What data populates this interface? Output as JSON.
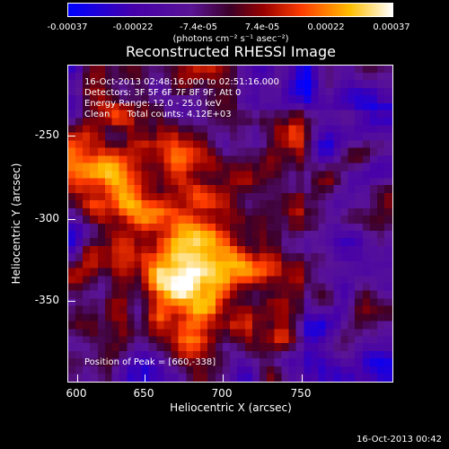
{
  "colorbar": {
    "tick_labels": [
      "-0.00037",
      "-0.00022",
      "-7.4e-05",
      "7.4e-05",
      "0.00022",
      "0.00037"
    ],
    "units_label": "(photons cm⁻² s⁻¹ asec⁻²)",
    "colors": [
      "#0000ff",
      "#5a00a0",
      "#8a0000",
      "#ff3000",
      "#ffcc00",
      "#ffffff"
    ]
  },
  "plot": {
    "title": "Reconstructed RHESSI Image",
    "annotations": {
      "time_range": "16-Oct-2013 02:48:16.000 to 02:51:16.000",
      "detectors": "Detectors: 3F 5F 6F 7F 8F 9F, Att 0",
      "energy_range": "Energy Range: 12.0 - 25.0 keV",
      "clean": "Clean      Total counts: 4.12E+03"
    },
    "peak_position": "Position of Peak = [660,-338]",
    "x_axis": {
      "label": "Heliocentric X (arcsec)",
      "ticks": [
        "600",
        "650",
        "700",
        "750"
      ]
    },
    "y_axis": {
      "label": "Heliocentric Y (arcsec)",
      "ticks": [
        "-250",
        "-300",
        "-350"
      ]
    }
  },
  "footer": {
    "timestamp": "16-Oct-2013 00:42"
  }
}
